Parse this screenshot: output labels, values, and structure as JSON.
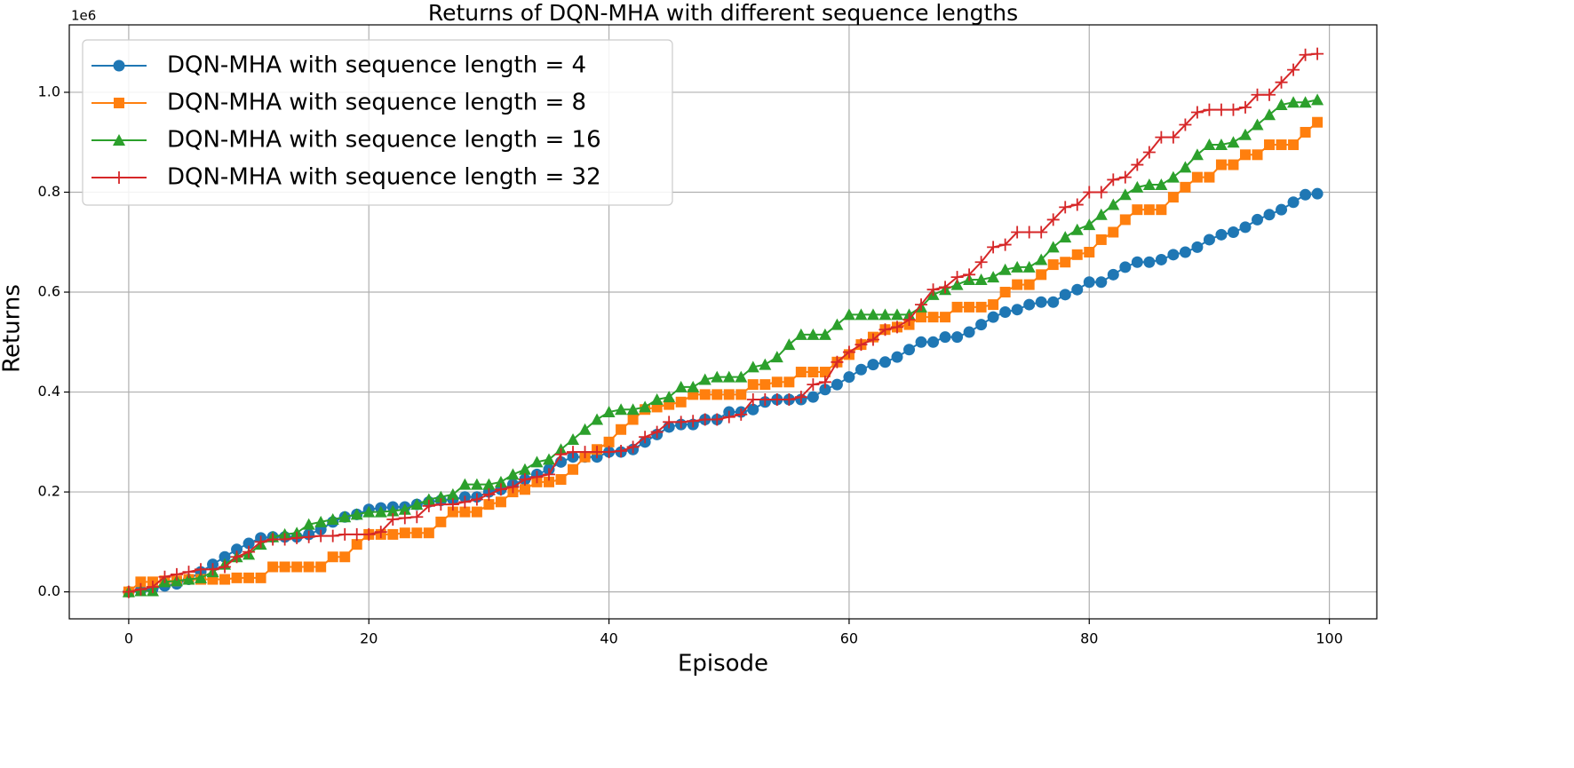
{
  "chart_data": {
    "type": "line",
    "title": "Returns of DQN-MHA with different sequence lengths",
    "xlabel": "Episode",
    "ylabel": "Returns",
    "y_offset_label": "1e6",
    "x": [
      0,
      1,
      2,
      3,
      4,
      5,
      6,
      7,
      8,
      9,
      10,
      11,
      12,
      13,
      14,
      15,
      16,
      17,
      18,
      19,
      20,
      21,
      22,
      23,
      24,
      25,
      26,
      27,
      28,
      29,
      30,
      31,
      32,
      33,
      34,
      35,
      36,
      37,
      38,
      39,
      40,
      41,
      42,
      43,
      44,
      45,
      46,
      47,
      48,
      49,
      50,
      51,
      52,
      53,
      54,
      55,
      56,
      57,
      58,
      59,
      60,
      61,
      62,
      63,
      64,
      65,
      66,
      67,
      68,
      69,
      70,
      71,
      72,
      73,
      74,
      75,
      76,
      77,
      78,
      79,
      80,
      81,
      82,
      83,
      84,
      85,
      86,
      87,
      88,
      89,
      90,
      91,
      92,
      93,
      94,
      95,
      96,
      97,
      98,
      99
    ],
    "series": [
      {
        "name": "DQN-MHA with sequence length = 4",
        "color": "#1f77b4",
        "marker": "circle",
        "values": [
          0,
          0.003,
          0.006,
          0.012,
          0.016,
          0.025,
          0.04,
          0.055,
          0.07,
          0.085,
          0.097,
          0.108,
          0.11,
          0.11,
          0.11,
          0.115,
          0.125,
          0.14,
          0.15,
          0.155,
          0.165,
          0.168,
          0.17,
          0.17,
          0.175,
          0.18,
          0.183,
          0.185,
          0.19,
          0.19,
          0.2,
          0.205,
          0.215,
          0.225,
          0.235,
          0.245,
          0.26,
          0.27,
          0.27,
          0.27,
          0.28,
          0.28,
          0.285,
          0.3,
          0.315,
          0.33,
          0.335,
          0.335,
          0.345,
          0.345,
          0.36,
          0.36,
          0.365,
          0.38,
          0.385,
          0.385,
          0.385,
          0.39,
          0.405,
          0.415,
          0.43,
          0.445,
          0.455,
          0.46,
          0.47,
          0.485,
          0.5,
          0.5,
          0.51,
          0.51,
          0.52,
          0.535,
          0.55,
          0.56,
          0.565,
          0.575,
          0.58,
          0.58,
          0.595,
          0.605,
          0.62,
          0.62,
          0.635,
          0.65,
          0.66,
          0.66,
          0.665,
          0.675,
          0.68,
          0.69,
          0.705,
          0.715,
          0.72,
          0.73,
          0.745,
          0.755,
          0.765,
          0.78,
          0.795,
          0.797
        ]
      },
      {
        "name": "DQN-MHA with sequence length = 8",
        "color": "#ff7f0e",
        "marker": "square",
        "values": [
          0,
          0.02,
          0.02,
          0.022,
          0.022,
          0.025,
          0.025,
          0.025,
          0.025,
          0.028,
          0.028,
          0.028,
          0.05,
          0.05,
          0.05,
          0.05,
          0.05,
          0.07,
          0.07,
          0.095,
          0.115,
          0.115,
          0.115,
          0.118,
          0.118,
          0.118,
          0.14,
          0.16,
          0.16,
          0.16,
          0.175,
          0.18,
          0.2,
          0.205,
          0.22,
          0.22,
          0.225,
          0.245,
          0.27,
          0.285,
          0.3,
          0.325,
          0.345,
          0.365,
          0.37,
          0.375,
          0.38,
          0.395,
          0.395,
          0.395,
          0.395,
          0.395,
          0.415,
          0.415,
          0.42,
          0.42,
          0.44,
          0.44,
          0.44,
          0.46,
          0.475,
          0.495,
          0.51,
          0.525,
          0.53,
          0.535,
          0.55,
          0.55,
          0.55,
          0.57,
          0.57,
          0.57,
          0.575,
          0.6,
          0.615,
          0.615,
          0.635,
          0.655,
          0.66,
          0.675,
          0.68,
          0.705,
          0.72,
          0.745,
          0.765,
          0.765,
          0.765,
          0.79,
          0.81,
          0.83,
          0.83,
          0.855,
          0.855,
          0.875,
          0.875,
          0.895,
          0.895,
          0.895,
          0.92,
          0.94
        ]
      },
      {
        "name": "DQN-MHA with sequence length = 16",
        "color": "#2ca02c",
        "marker": "triangle",
        "values": [
          0,
          0.002,
          0.002,
          0.02,
          0.022,
          0.025,
          0.028,
          0.04,
          0.055,
          0.07,
          0.075,
          0.095,
          0.11,
          0.115,
          0.118,
          0.135,
          0.14,
          0.145,
          0.15,
          0.155,
          0.16,
          0.16,
          0.162,
          0.165,
          0.175,
          0.185,
          0.19,
          0.195,
          0.215,
          0.215,
          0.215,
          0.22,
          0.235,
          0.245,
          0.26,
          0.265,
          0.285,
          0.305,
          0.325,
          0.345,
          0.36,
          0.365,
          0.365,
          0.37,
          0.385,
          0.39,
          0.41,
          0.41,
          0.425,
          0.43,
          0.43,
          0.43,
          0.45,
          0.455,
          0.47,
          0.495,
          0.515,
          0.515,
          0.515,
          0.535,
          0.555,
          0.555,
          0.555,
          0.555,
          0.555,
          0.555,
          0.57,
          0.595,
          0.605,
          0.615,
          0.625,
          0.625,
          0.63,
          0.645,
          0.65,
          0.65,
          0.665,
          0.69,
          0.71,
          0.725,
          0.735,
          0.755,
          0.775,
          0.795,
          0.81,
          0.815,
          0.815,
          0.83,
          0.85,
          0.875,
          0.895,
          0.895,
          0.9,
          0.915,
          0.935,
          0.955,
          0.975,
          0.98,
          0.98,
          0.985
        ]
      },
      {
        "name": "DQN-MHA with sequence length = 32",
        "color": "#d62728",
        "marker": "plus",
        "values": [
          0,
          0.005,
          0.01,
          0.03,
          0.035,
          0.04,
          0.045,
          0.045,
          0.05,
          0.07,
          0.08,
          0.1,
          0.105,
          0.105,
          0.108,
          0.11,
          0.112,
          0.112,
          0.115,
          0.115,
          0.115,
          0.12,
          0.145,
          0.148,
          0.15,
          0.172,
          0.175,
          0.175,
          0.18,
          0.185,
          0.195,
          0.205,
          0.21,
          0.225,
          0.23,
          0.235,
          0.275,
          0.28,
          0.28,
          0.28,
          0.28,
          0.282,
          0.29,
          0.31,
          0.32,
          0.34,
          0.34,
          0.342,
          0.345,
          0.345,
          0.35,
          0.355,
          0.385,
          0.385,
          0.385,
          0.385,
          0.39,
          0.415,
          0.42,
          0.46,
          0.48,
          0.495,
          0.505,
          0.525,
          0.53,
          0.545,
          0.575,
          0.605,
          0.61,
          0.63,
          0.635,
          0.66,
          0.69,
          0.695,
          0.72,
          0.72,
          0.72,
          0.745,
          0.77,
          0.775,
          0.8,
          0.8,
          0.825,
          0.83,
          0.855,
          0.88,
          0.91,
          0.91,
          0.935,
          0.96,
          0.965,
          0.965,
          0.965,
          0.97,
          0.995,
          0.995,
          1.02,
          1.045,
          1.075,
          1.077
        ]
      }
    ],
    "xlim": [
      -4.95,
      103.95
    ],
    "ylim": [
      -0.054,
      1.135
    ],
    "xticks": [
      0,
      20,
      40,
      60,
      80,
      100
    ],
    "yticks": [
      {
        "value": 0,
        "label": "0.0"
      },
      0.2,
      0.4,
      0.6,
      0.8,
      {
        "value": 1,
        "label": "1.0"
      }
    ],
    "grid": true,
    "legend": "upper left"
  }
}
